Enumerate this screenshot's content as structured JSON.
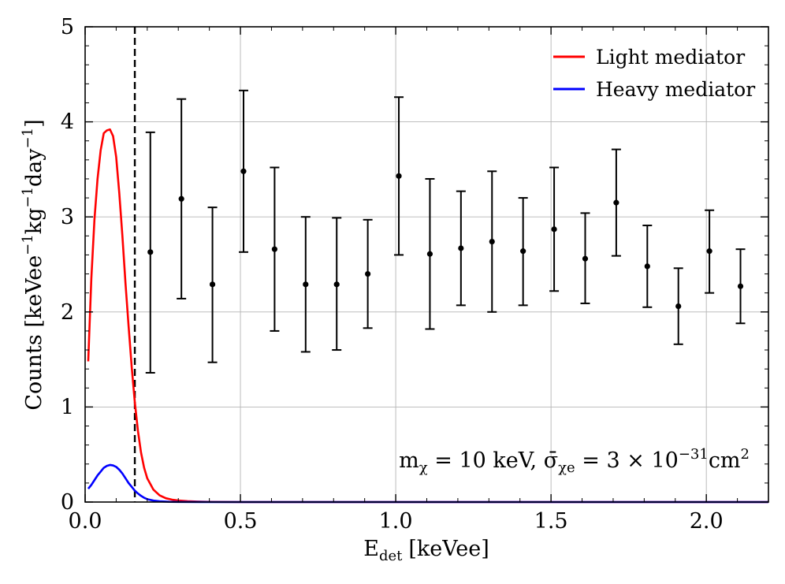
{
  "chart_data": {
    "type": "scatter",
    "title": "",
    "xlabel": "E",
    "xlabel_sub": "det",
    "xlabel_unit": "[keVee]",
    "ylabel": "Counts [keVee",
    "ylabel_sup": "−1",
    "ylabel_kg": "kg",
    "ylabel_day": "day",
    "ylabel_close": "]",
    "xlim": [
      0.0,
      2.2
    ],
    "ylim": [
      0,
      5
    ],
    "x_ticks": [
      {
        "value": 0.0,
        "label": "0.0"
      },
      {
        "value": 0.5,
        "label": "0.5"
      },
      {
        "value": 1.0,
        "label": "1.0"
      },
      {
        "value": 1.5,
        "label": "1.5"
      },
      {
        "value": 2.0,
        "label": "2.0"
      }
    ],
    "y_ticks": [
      {
        "value": 0,
        "label": "0"
      },
      {
        "value": 1,
        "label": "1"
      },
      {
        "value": 2,
        "label": "2"
      },
      {
        "value": 3,
        "label": "3"
      },
      {
        "value": 4,
        "label": "4"
      },
      {
        "value": 5,
        "label": "5"
      }
    ],
    "grid": true,
    "threshold_line": {
      "x": 0.16,
      "style": "dashed",
      "color": "#000000"
    },
    "legend": {
      "placement": "top-right",
      "entries": [
        {
          "label": "Light mediator",
          "color": "#ff0000"
        },
        {
          "label": "Heavy mediator",
          "color": "#0000ff"
        }
      ]
    },
    "annotation": {
      "placement": "bottom-right",
      "m_symbol": "m",
      "m_sub": "χ",
      "m_value": " = 10 keV, ",
      "sigma_symbol": "σ̄",
      "sigma_sub": "χe",
      "sigma_value": " = 3 × 10",
      "sigma_exp": "−31",
      "sigma_unit": "cm",
      "sigma_unit_exp": "2"
    },
    "series": [
      {
        "name": "Light mediator",
        "kind": "line",
        "color": "#ff0000",
        "x": [
          0.01,
          0.02,
          0.03,
          0.04,
          0.05,
          0.06,
          0.07,
          0.08,
          0.09,
          0.1,
          0.11,
          0.12,
          0.13,
          0.14,
          0.15,
          0.16,
          0.17,
          0.18,
          0.19,
          0.2,
          0.22,
          0.24,
          0.26,
          0.28,
          0.3,
          0.33,
          0.36,
          0.4,
          0.5,
          0.7,
          1.0,
          1.5,
          2.0,
          2.2
        ],
        "y": [
          1.48,
          2.35,
          2.97,
          3.4,
          3.7,
          3.88,
          3.91,
          3.92,
          3.85,
          3.63,
          3.25,
          2.8,
          2.3,
          1.85,
          1.42,
          1.05,
          0.75,
          0.52,
          0.36,
          0.25,
          0.13,
          0.07,
          0.04,
          0.025,
          0.016,
          0.009,
          0.005,
          0.002,
          0.0,
          0.0,
          0.0,
          0.0,
          0.0,
          0.0
        ]
      },
      {
        "name": "Heavy mediator",
        "kind": "line",
        "color": "#0000ff",
        "x": [
          0.01,
          0.02,
          0.03,
          0.04,
          0.05,
          0.06,
          0.07,
          0.08,
          0.09,
          0.1,
          0.11,
          0.12,
          0.13,
          0.14,
          0.15,
          0.16,
          0.17,
          0.18,
          0.19,
          0.2,
          0.22,
          0.24,
          0.27,
          0.3,
          0.4,
          0.6,
          1.0,
          1.5,
          2.0,
          2.2
        ],
        "y": [
          0.14,
          0.18,
          0.23,
          0.28,
          0.32,
          0.36,
          0.38,
          0.39,
          0.385,
          0.37,
          0.34,
          0.3,
          0.25,
          0.2,
          0.16,
          0.12,
          0.09,
          0.065,
          0.045,
          0.03,
          0.015,
          0.008,
          0.003,
          0.001,
          0.0,
          0.0,
          0.0,
          0.0,
          0.0,
          0.0
        ]
      },
      {
        "name": "Data",
        "kind": "errorbar",
        "color": "#000000",
        "points": [
          {
            "x": 0.21,
            "y": 2.63,
            "lo": 1.36,
            "hi": 3.89
          },
          {
            "x": 0.31,
            "y": 3.19,
            "lo": 2.14,
            "hi": 4.24
          },
          {
            "x": 0.41,
            "y": 2.29,
            "lo": 1.47,
            "hi": 3.1
          },
          {
            "x": 0.51,
            "y": 3.48,
            "lo": 2.63,
            "hi": 4.33
          },
          {
            "x": 0.61,
            "y": 2.66,
            "lo": 1.8,
            "hi": 3.52
          },
          {
            "x": 0.71,
            "y": 2.29,
            "lo": 1.58,
            "hi": 3.0
          },
          {
            "x": 0.81,
            "y": 2.29,
            "lo": 1.6,
            "hi": 2.99
          },
          {
            "x": 0.91,
            "y": 2.4,
            "lo": 1.83,
            "hi": 2.97
          },
          {
            "x": 1.01,
            "y": 3.43,
            "lo": 2.6,
            "hi": 4.26
          },
          {
            "x": 1.11,
            "y": 2.61,
            "lo": 1.82,
            "hi": 3.4
          },
          {
            "x": 1.21,
            "y": 2.67,
            "lo": 2.07,
            "hi": 3.27
          },
          {
            "x": 1.31,
            "y": 2.74,
            "lo": 2.0,
            "hi": 3.48
          },
          {
            "x": 1.41,
            "y": 2.64,
            "lo": 2.07,
            "hi": 3.2
          },
          {
            "x": 1.51,
            "y": 2.87,
            "lo": 2.22,
            "hi": 3.52
          },
          {
            "x": 1.61,
            "y": 2.56,
            "lo": 2.09,
            "hi": 3.04
          },
          {
            "x": 1.71,
            "y": 3.15,
            "lo": 2.59,
            "hi": 3.71
          },
          {
            "x": 1.81,
            "y": 2.48,
            "lo": 2.05,
            "hi": 2.91
          },
          {
            "x": 1.91,
            "y": 2.06,
            "lo": 1.66,
            "hi": 2.46
          },
          {
            "x": 2.01,
            "y": 2.64,
            "lo": 2.2,
            "hi": 3.07
          },
          {
            "x": 2.11,
            "y": 2.27,
            "lo": 1.88,
            "hi": 2.66
          }
        ]
      }
    ]
  }
}
